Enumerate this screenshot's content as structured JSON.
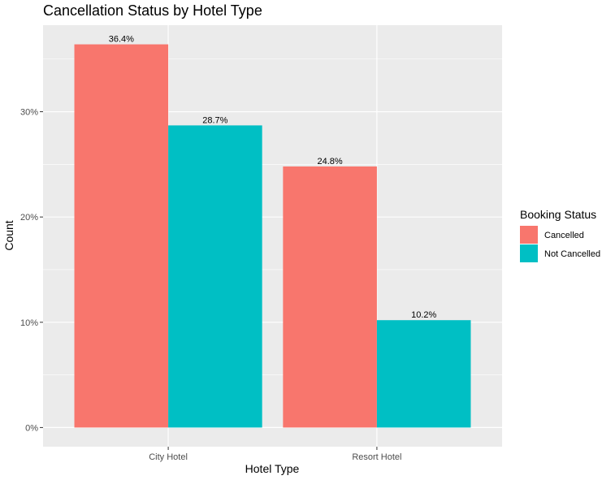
{
  "chart_data": {
    "type": "bar",
    "title": "Cancellation Status by Hotel Type",
    "xlabel": "Hotel Type",
    "ylabel": "Count",
    "categories": [
      "City Hotel",
      "Resort Hotel"
    ],
    "series": [
      {
        "name": "Cancelled",
        "values": [
          36.4,
          24.8
        ],
        "labels": [
          "36.4%",
          "24.8%"
        ],
        "color": "#F8766D"
      },
      {
        "name": "Not Cancelled",
        "values": [
          28.7,
          10.2
        ],
        "labels": [
          "28.7%",
          "10.2%"
        ],
        "color": "#00BFC4"
      }
    ],
    "yticks": [
      0,
      10,
      20,
      30
    ],
    "ytick_labels": [
      "0%",
      "10%",
      "20%",
      "30%"
    ],
    "ylim": [
      -1.82,
      38.22
    ],
    "grid": true,
    "legend": {
      "title": "Booking Status",
      "position": "right"
    }
  }
}
